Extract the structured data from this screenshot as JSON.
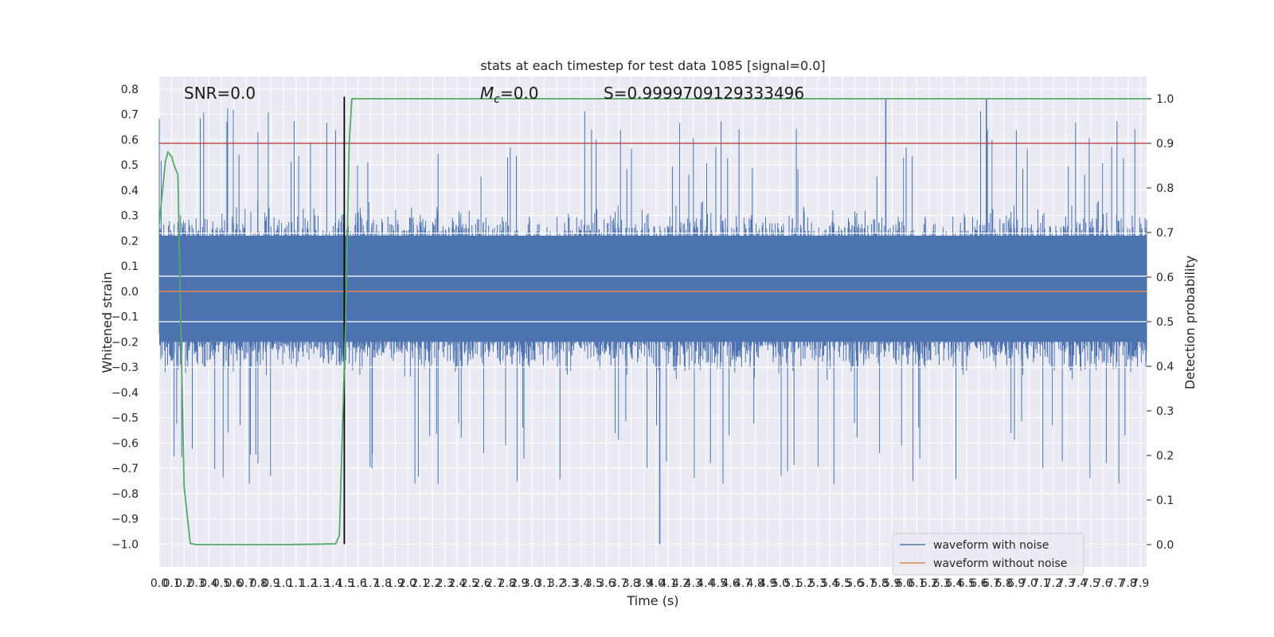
{
  "chart_data": {
    "type": "line",
    "title": "stats at each timestep for test data 1085 [signal=0.0]",
    "xlabel": "Time (s)",
    "ylabel": "Whitened strain",
    "y2label": "Detection probability",
    "xlim": [
      0.0,
      7.95
    ],
    "ylim": [
      -1.09,
      0.85
    ],
    "y2lim": [
      -0.05,
      1.05
    ],
    "x_ticks": [
      "0.0",
      "0.1",
      "0.2",
      "0.3",
      "0.4",
      "0.5",
      "0.6",
      "0.7",
      "0.8",
      "0.9",
      "1.0",
      "1.1",
      "1.2",
      "1.3",
      "1.4",
      "1.5",
      "1.6",
      "1.7",
      "1.8",
      "1.9",
      "2.0",
      "2.1",
      "2.2",
      "2.3",
      "2.4",
      "2.5",
      "2.6",
      "2.7",
      "2.8",
      "2.9",
      "3.0",
      "3.1",
      "3.2",
      "3.3",
      "3.4",
      "3.5",
      "3.6",
      "3.7",
      "3.8",
      "3.9",
      "4.0",
      "4.1",
      "4.2",
      "4.3",
      "4.4",
      "4.5",
      "4.6",
      "4.7",
      "4.8",
      "4.9",
      "5.0",
      "5.1",
      "5.2",
      "5.3",
      "5.4",
      "5.5",
      "5.6",
      "5.7",
      "5.8",
      "5.9",
      "6.0",
      "6.1",
      "6.2",
      "6.3",
      "6.4",
      "6.5",
      "6.6",
      "6.7",
      "6.8",
      "6.9",
      "7.0",
      "7.1",
      "7.2",
      "7.3",
      "7.4",
      "7.5",
      "7.6",
      "7.7",
      "7.8",
      "7.9"
    ],
    "y_ticks": [
      "0.8",
      "0.7",
      "0.6",
      "0.5",
      "0.4",
      "0.3",
      "0.2",
      "0.1",
      "0.0",
      "-0.1",
      "-0.2",
      "-0.3",
      "-0.4",
      "-0.5",
      "-0.6",
      "-0.7",
      "-0.8",
      "-0.9",
      "-1.0"
    ],
    "y2_ticks": [
      "1.0",
      "0.9",
      "0.8",
      "0.7",
      "0.6",
      "0.5",
      "0.4",
      "0.3",
      "0.2",
      "0.1",
      "0.0"
    ],
    "annotations": {
      "snr": "SNR=0.0",
      "mc_symbol": "M",
      "mc_sub": "c",
      "mc_value": "=0.0",
      "s": "S=0.9999709129333496"
    },
    "series": [
      {
        "name": "waveform with noise",
        "color": "#4c72b0",
        "description_peaks": {
          "max": 0.76,
          "min": -1.0
        }
      },
      {
        "name": "waveform without noise",
        "color": "#dd8452",
        "values_constant": 0.0
      },
      {
        "color": "#55a868",
        "axis": "right",
        "x": [
          0.0,
          0.05,
          0.07,
          0.1,
          0.12,
          0.15,
          0.2,
          0.25,
          0.3,
          0.5,
          1.0,
          1.3,
          1.42,
          1.45,
          1.5,
          1.53,
          1.55,
          1.6,
          2.0,
          3.0,
          4.0,
          5.0,
          6.0,
          7.0,
          7.95
        ],
        "values": [
          0.72,
          0.86,
          0.88,
          0.87,
          0.85,
          0.83,
          0.13,
          0.0025,
          0.0,
          0.0,
          0.0,
          0.001,
          0.002,
          0.02,
          0.5,
          0.9,
          1.0,
          1.0,
          1.0,
          1.0,
          1.0,
          1.0,
          1.0,
          1.0,
          1.0
        ]
      },
      {
        "color": "#c44e52",
        "axis": "right",
        "values_constant": 0.9
      },
      {
        "color": "#000000",
        "orientation": "vertical",
        "x_value": 1.49,
        "y_range": [
          -1.0,
          0.77
        ]
      }
    ],
    "legend": {
      "position": "lower-right",
      "entries": [
        "waveform with noise",
        "waveform without noise"
      ]
    },
    "grid": true,
    "background": "#eaeaf2"
  }
}
